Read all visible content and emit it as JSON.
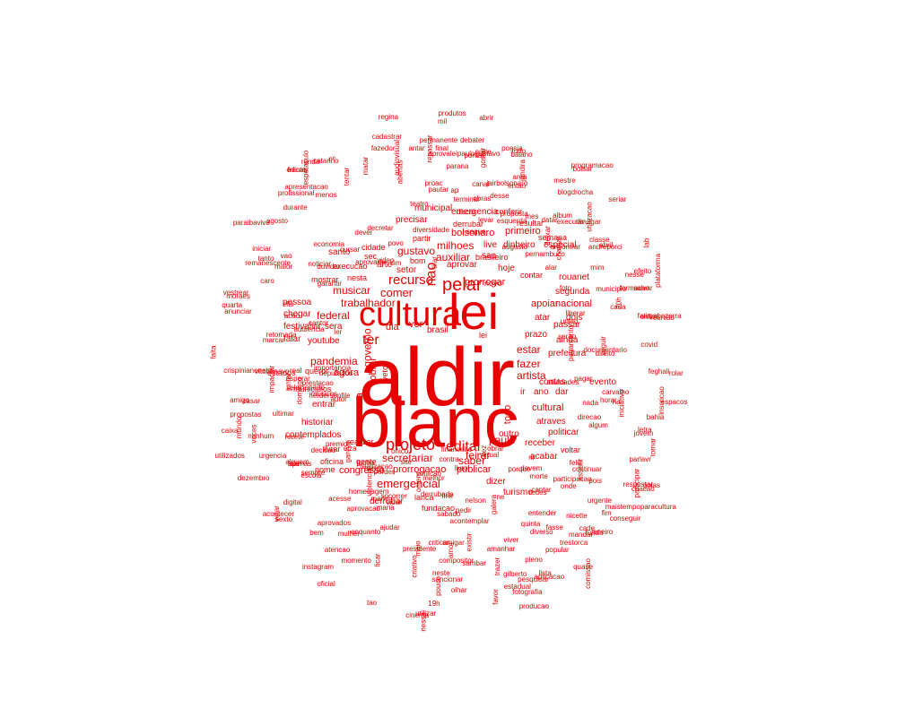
{
  "color": "#e80000",
  "words": [
    {
      "text": "aldir",
      "weight": 100
    },
    {
      "text": "blanc",
      "weight": 100
    },
    {
      "text": "lei",
      "weight": 58
    },
    {
      "text": "cultura",
      "weight": 38
    },
    {
      "text": "projeto",
      "weight": 18
    },
    {
      "text": "edital",
      "weight": 17
    },
    {
      "text": "pelar",
      "weight": 19
    },
    {
      "text": "ter",
      "weight": 14
    },
    {
      "text": "nao",
      "weight": 14
    },
    {
      "text": "recurso",
      "weight": 12
    },
    {
      "text": "comer",
      "weight": 11
    },
    {
      "text": "emergencial",
      "weight": 10
    },
    {
      "text": "prorrogar",
      "weight": 10
    },
    {
      "text": "milhoes",
      "weight": 10
    },
    {
      "text": "auxiliar",
      "weight": 10
    },
    {
      "text": "gustavo",
      "weight": 10
    },
    {
      "text": "governo",
      "weight": 10
    },
    {
      "text": "fazer",
      "weight": 10
    },
    {
      "text": "artista",
      "weight": 10
    },
    {
      "text": "paulo",
      "weight": 10
    },
    {
      "text": "secretariar",
      "weight": 10
    },
    {
      "text": "musicar",
      "weight": 10
    },
    {
      "text": "pandemia",
      "weight": 10
    },
    {
      "text": "federal",
      "weight": 10
    },
    {
      "text": "trabalhador",
      "weight": 10
    },
    {
      "text": "estar",
      "weight": 9
    },
    {
      "text": "saber",
      "weight": 9
    },
    {
      "text": "feirar",
      "weight": 9
    },
    {
      "text": "bolsonaro",
      "weight": 9
    },
    {
      "text": "primeiro",
      "weight": 9
    },
    {
      "text": "apoiar",
      "weight": 9
    },
    {
      "text": "nacional",
      "weight": 9
    },
    {
      "text": "agora",
      "weight": 9
    },
    {
      "text": "sobrar",
      "weight": 9
    },
    {
      "text": "camara",
      "weight": 9
    },
    {
      "text": "todo",
      "weight": 9
    },
    {
      "text": "cultural",
      "weight": 9
    },
    {
      "text": "publicar",
      "weight": 9
    },
    {
      "text": "prorrogacao",
      "weight": 9
    },
    {
      "text": "congresso",
      "weight": 9
    },
    {
      "text": "contas",
      "weight": 8
    },
    {
      "text": "evento",
      "weight": 8
    },
    {
      "text": "atraves",
      "weight": 8
    },
    {
      "text": "ver",
      "weight": 8
    },
    {
      "text": "dia",
      "weight": 8
    },
    {
      "text": "ir",
      "weight": 8
    },
    {
      "text": "ano",
      "weight": 8
    },
    {
      "text": "dar",
      "weight": 8
    },
    {
      "text": "youtube",
      "weight": 8
    },
    {
      "text": "sera",
      "weight": 8
    },
    {
      "text": "prazo",
      "weight": 8
    },
    {
      "text": "prefeitura",
      "weight": 8
    },
    {
      "text": "brasileiro",
      "weight": 7
    },
    {
      "text": "hoje",
      "weight": 7
    },
    {
      "text": "novo",
      "weight": 7
    },
    {
      "text": "setor",
      "weight": 7
    },
    {
      "text": "arte",
      "weight": 7
    },
    {
      "text": "aprovar",
      "weight": 7
    },
    {
      "text": "sao",
      "weight": 7
    },
    {
      "text": "brasil",
      "weight": 7
    },
    {
      "text": "festival",
      "weight": 7
    },
    {
      "text": "vir",
      "weight": 7
    },
    {
      "text": "falar",
      "weight": 7
    },
    {
      "text": "chegar",
      "weight": 7
    },
    {
      "text": "pessoa",
      "weight": 7
    },
    {
      "text": "queror",
      "weight": 7
    },
    {
      "text": "estados",
      "weight": 7
    },
    {
      "text": "municipios",
      "weight": 7
    },
    {
      "text": "historiar",
      "weight": 7
    },
    {
      "text": "entrar",
      "weight": 7
    },
    {
      "text": "contemplados",
      "weight": 7
    },
    {
      "text": "realizar",
      "weight": 7
    },
    {
      "text": "livrar",
      "weight": 7
    },
    {
      "text": "oficina",
      "weight": 7
    },
    {
      "text": "nome",
      "weight": 7
    },
    {
      "text": "gente",
      "weight": 7
    },
    {
      "text": "lanca",
      "weight": 7
    },
    {
      "text": "fundacao",
      "weight": 7
    },
    {
      "text": "derrubar",
      "weight": 7
    },
    {
      "text": "turismo",
      "weight": 7
    },
    {
      "text": "dizer",
      "weight": 7
    },
    {
      "text": "acabar",
      "weight": 7
    },
    {
      "text": "receber",
      "weight": 7
    },
    {
      "text": "outro",
      "weight": 7
    },
    {
      "text": "politicar",
      "weight": 7
    },
    {
      "text": "voltar",
      "weight": 7
    },
    {
      "text": "segunda",
      "weight": 7
    },
    {
      "text": "passar",
      "weight": 7
    },
    {
      "text": "atar",
      "weight": 7
    },
    {
      "text": "dois",
      "weight": 7
    },
    {
      "text": "ainda",
      "weight": 7
    },
    {
      "text": "rouanet",
      "weight": 7
    },
    {
      "text": "contar",
      "weight": 7
    },
    {
      "text": "semana",
      "weight": 7
    },
    {
      "text": "especial",
      "weight": 7
    },
    {
      "text": "dinheiro",
      "weight": 7
    },
    {
      "text": "live",
      "weight": 7
    },
    {
      "text": "emergencia",
      "weight": 7
    },
    {
      "text": "conferir",
      "weight": 7
    },
    {
      "text": "municipal",
      "weight": 7
    },
    {
      "text": "precisar",
      "weight": 7
    },
    {
      "text": "partir",
      "weight": 7
    },
    {
      "text": "cidade",
      "weight": 7
    },
    {
      "text": "santo",
      "weight": 7
    },
    {
      "text": "execucao",
      "weight": 7
    },
    {
      "text": "mostrar",
      "weight": 7
    },
    {
      "text": "nesta",
      "weight": 7
    },
    {
      "text": "sec",
      "weight": 6
    },
    {
      "text": "bom",
      "weight": 6
    },
    {
      "text": "resultar",
      "weight": 6
    },
    {
      "text": "derrubar",
      "weight": 6
    },
    {
      "text": "veto",
      "weight": 6
    },
    {
      "text": "lei",
      "weight": 6
    }
  ]
}
